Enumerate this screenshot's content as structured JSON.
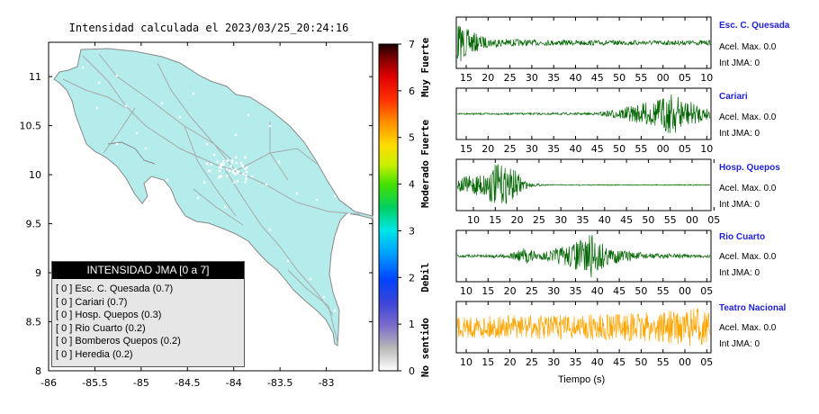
{
  "chart_data": [
    {
      "type": "heatmap",
      "title": "Intensidad calculada el 2023/03/25_20:24:16",
      "x_ticks": [
        "-86",
        "-85.5",
        "-85",
        "-84.5",
        "-84",
        "-83.5",
        "-83"
      ],
      "y_ticks": [
        "11",
        "10.5",
        "10",
        "9.5",
        "9",
        "8.5",
        "8"
      ],
      "xlim": [
        -86,
        -82.5
      ],
      "ylim": [
        8,
        11.35
      ],
      "map_fill_color": "#b4ecec",
      "colorbar": {
        "range": [
          0,
          7
        ],
        "ticks": [
          "0",
          "1",
          "2",
          "3",
          "4",
          "5",
          "6",
          "7"
        ],
        "labels": [
          {
            "text": "No sentido",
            "at": 0.5
          },
          {
            "text": "Debil",
            "at": 2
          },
          {
            "text": "Moderado",
            "at": 4
          },
          {
            "text": "Fuerte",
            "at": 5
          },
          {
            "text": "Muy Fuerte",
            "at": 6.5
          }
        ]
      },
      "legend": {
        "header": "INTENSIDAD JMA [0 a 7]",
        "items": [
          "[ 0 ]  Esc. C. Quesada (0.7)",
          "[ 0 ]  Cariari (0.7)",
          "[ 0 ]  Hosp. Quepos (0.3)",
          "[ 0 ]  Rio Cuarto (0.2)",
          "[ 0 ]  Bomberos Quepos (0.2)",
          "[ 0 ]  Heredia (0.2)"
        ]
      }
    },
    {
      "type": "line",
      "xlabel": "Tiempo (s)",
      "panels": [
        {
          "name": "Esc. C. Quesada",
          "acel": "Acel. Max. 0.0",
          "int": "Int JMA: 0",
          "color": "#006400",
          "x_ticks": [
            "15",
            "20",
            "25",
            "30",
            "35",
            "40",
            "45",
            "50",
            "55",
            "00",
            "05",
            "10"
          ],
          "envelope": [
            [
              0,
              0.9
            ],
            [
              0.05,
              0.5
            ],
            [
              0.12,
              0.2
            ],
            [
              0.3,
              0.12
            ],
            [
              0.6,
              0.1
            ],
            [
              1,
              0.1
            ]
          ]
        },
        {
          "name": "Cariari",
          "acel": "Acel. Max. 0.0",
          "int": "Int JMA: 0",
          "color": "#006400",
          "x_ticks": [
            "15",
            "20",
            "25",
            "30",
            "35",
            "40",
            "45",
            "50",
            "55",
            "00",
            "05",
            "10"
          ],
          "envelope": [
            [
              0,
              0.03
            ],
            [
              0.55,
              0.05
            ],
            [
              0.65,
              0.25
            ],
            [
              0.78,
              0.55
            ],
            [
              0.85,
              0.9
            ],
            [
              0.9,
              0.6
            ],
            [
              1,
              0.2
            ]
          ]
        },
        {
          "name": "Hosp. Quepos",
          "acel": "Acel. Max. 0.0",
          "int": "Int JMA: 0",
          "color": "#006400",
          "x_ticks": [
            "10",
            "15",
            "20",
            "25",
            "30",
            "35",
            "40",
            "45",
            "50",
            "55",
            "00",
            "05"
          ],
          "envelope": [
            [
              0,
              0.3
            ],
            [
              0.1,
              0.5
            ],
            [
              0.15,
              0.9
            ],
            [
              0.22,
              0.7
            ],
            [
              0.28,
              0.1
            ],
            [
              0.35,
              0.02
            ],
            [
              1,
              0.02
            ]
          ]
        },
        {
          "name": "Rio Cuarto",
          "acel": "Acel. Max. 0.0",
          "int": "Int JMA: 0",
          "color": "#006400",
          "x_ticks": [
            "10",
            "15",
            "20",
            "25",
            "30",
            "35",
            "40",
            "45",
            "50",
            "55",
            "00",
            "05"
          ],
          "envelope": [
            [
              0,
              0.05
            ],
            [
              0.2,
              0.08
            ],
            [
              0.27,
              0.35
            ],
            [
              0.33,
              0.15
            ],
            [
              0.45,
              0.5
            ],
            [
              0.53,
              0.95
            ],
            [
              0.6,
              0.35
            ],
            [
              0.75,
              0.12
            ],
            [
              1,
              0.06
            ]
          ]
        },
        {
          "name": "Teatro Nacional",
          "acel": "Acel. Max. 0.0",
          "int": "Int JMA: 0",
          "color": "#ffa500",
          "x_ticks": [
            "10",
            "15",
            "20",
            "25",
            "30",
            "35",
            "40",
            "45",
            "50",
            "55",
            "00",
            "05"
          ],
          "envelope": [
            [
              0,
              0.45
            ],
            [
              0.3,
              0.5
            ],
            [
              0.6,
              0.55
            ],
            [
              0.85,
              0.7
            ],
            [
              0.95,
              0.85
            ],
            [
              1,
              0.6
            ]
          ]
        }
      ]
    }
  ]
}
